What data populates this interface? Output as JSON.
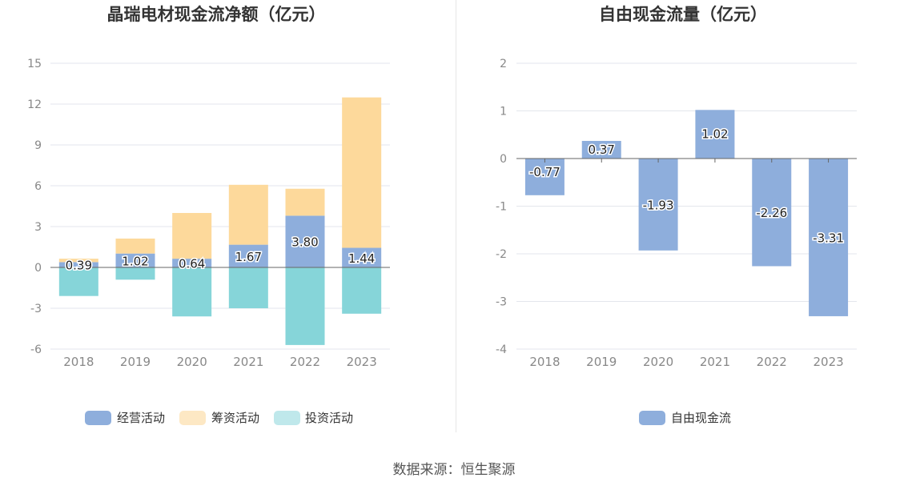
{
  "colors": {
    "operating": "#8eaedc",
    "financing": "#fdd99b",
    "investing": "#86d5d9",
    "free_cash_flow": "#8eaedc",
    "legend_investing": "#bfe8eb",
    "legend_financing": "#fde8c4"
  },
  "chart_data": [
    {
      "type": "bar",
      "stacked": true,
      "title": "晶瑞电材现金流净额（亿元）",
      "categories": [
        "2018",
        "2019",
        "2020",
        "2021",
        "2022",
        "2023"
      ],
      "series": [
        {
          "name": "经营活动",
          "values": [
            0.39,
            1.02,
            0.64,
            1.67,
            3.8,
            1.44
          ],
          "labels": [
            "0.39",
            "1.02",
            "0.64",
            "1.67",
            "3.80",
            "1.44"
          ]
        },
        {
          "name": "筹资活动",
          "values": [
            0.25,
            1.1,
            3.36,
            4.4,
            1.98,
            11.05
          ]
        },
        {
          "name": "投资活动",
          "values": [
            -2.1,
            -0.9,
            -3.6,
            -3.0,
            -5.7,
            -3.4
          ]
        }
      ],
      "yticks": [
        "15",
        "12",
        "9",
        "6",
        "3",
        "0",
        "-3",
        "-6"
      ],
      "ylim": [
        -6,
        15
      ],
      "grid": true,
      "legend": "bottom"
    },
    {
      "type": "bar",
      "title": "自由现金流量（亿元）",
      "categories": [
        "2018",
        "2019",
        "2020",
        "2021",
        "2022",
        "2023"
      ],
      "series": [
        {
          "name": "自由现金流",
          "values": [
            -0.77,
            0.37,
            -1.93,
            1.02,
            -2.26,
            -3.31
          ],
          "labels": [
            "-0.77",
            "0.37",
            "-1.93",
            "1.02",
            "-2.26",
            "-3.31"
          ]
        }
      ],
      "yticks": [
        "2",
        "1",
        "0",
        "-1",
        "-2",
        "-3",
        "-4"
      ],
      "ylim": [
        -4,
        2
      ],
      "grid": true,
      "legend": "bottom"
    }
  ],
  "footer": {
    "source": "数据来源：恒生聚源"
  }
}
